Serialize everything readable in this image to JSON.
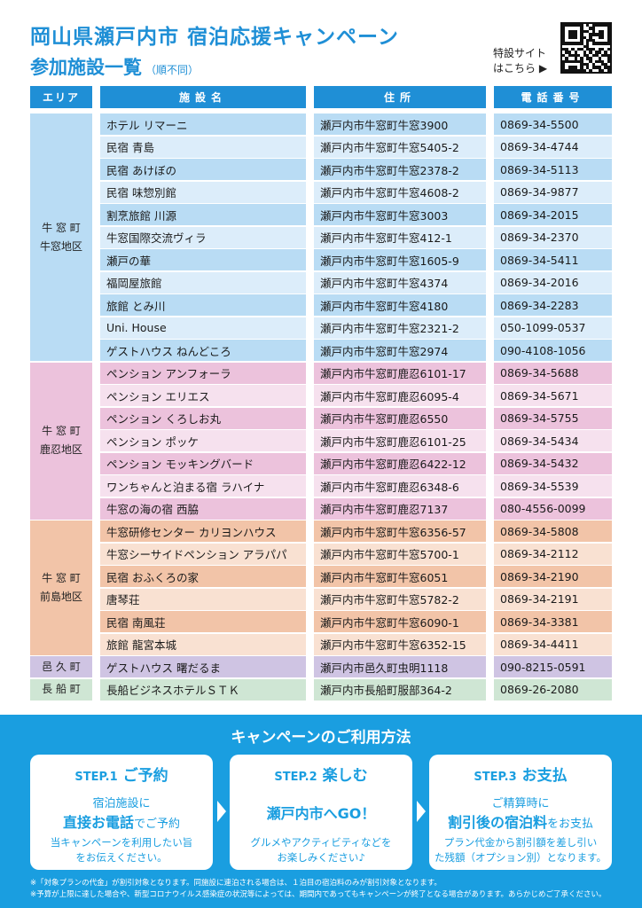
{
  "header": {
    "title_line1": "岡山県瀬戸内市 宿泊応援キャンペーン",
    "title_line2": "参加施設一覧",
    "title_sub": "（順不同）",
    "special_site_line1": "特設サイト",
    "special_site_line2": "はこちら ▶"
  },
  "columns": {
    "area": "エリア",
    "name": "施設名",
    "address": "住所",
    "phone": "電話番号"
  },
  "colors": {
    "blue_dark": "#b9dcf4",
    "blue_light": "#dcedfa",
    "pink_dark": "#ecc2dc",
    "pink_light": "#f6e1ee",
    "orange_dark": "#f2c4a8",
    "orange_light": "#f9e1d2",
    "purple_dark": "#cfc4e3",
    "green_dark": "#cfe6d4"
  },
  "areas": [
    {
      "line1": "牛 窓 町",
      "line2": "牛窓地区"
    },
    {
      "line1": "牛 窓 町",
      "line2": "鹿忍地区"
    },
    {
      "line1": "牛 窓 町",
      "line2": "前島地区"
    },
    {
      "line1": "邑 久 町",
      "line2": ""
    },
    {
      "line1": "長 船 町",
      "line2": ""
    }
  ],
  "facilities": [
    {
      "area": 0,
      "name": "ホテル リマーニ",
      "address": "瀬戸内市牛窓町牛窓3900",
      "phone": "0869-34-5500"
    },
    {
      "area": 0,
      "name": "民宿 青島",
      "address": "瀬戸内市牛窓町牛窓5405-2",
      "phone": "0869-34-4744"
    },
    {
      "area": 0,
      "name": "民宿 あけぼの",
      "address": "瀬戸内市牛窓町牛窓2378-2",
      "phone": "0869-34-5113"
    },
    {
      "area": 0,
      "name": "民宿 味惣別館",
      "address": "瀬戸内市牛窓町牛窓4608-2",
      "phone": "0869-34-9877"
    },
    {
      "area": 0,
      "name": "割烹旅館 川源",
      "address": "瀬戸内市牛窓町牛窓3003",
      "phone": "0869-34-2015"
    },
    {
      "area": 0,
      "name": "牛窓国際交流ヴィラ",
      "address": "瀬戸内市牛窓町牛窓412-1",
      "phone": "0869-34-2370"
    },
    {
      "area": 0,
      "name": "瀬戸の華",
      "address": "瀬戸内市牛窓町牛窓1605-9",
      "phone": "0869-34-5411"
    },
    {
      "area": 0,
      "name": "福岡屋旅館",
      "address": "瀬戸内市牛窓町牛窓4374",
      "phone": "0869-34-2016"
    },
    {
      "area": 0,
      "name": "旅館 とみ川",
      "address": "瀬戸内市牛窓町牛窓4180",
      "phone": "0869-34-2283"
    },
    {
      "area": 0,
      "name": " Uni. House",
      "address": "瀬戸内市牛窓町牛窓2321-2",
      "phone": "050-1099-0537"
    },
    {
      "area": 0,
      "name": "ゲストハウス ねんどころ",
      "address": "瀬戸内市牛窓町牛窓2974",
      "phone": "090-4108-1056"
    },
    {
      "area": 1,
      "name": "ペンション アンフォーラ",
      "address": "瀬戸内市牛窓町鹿忍6101-17",
      "phone": "0869-34-5688"
    },
    {
      "area": 1,
      "name": "ペンション エリエス",
      "address": "瀬戸内市牛窓町鹿忍6095-4",
      "phone": "0869-34-5671"
    },
    {
      "area": 1,
      "name": "ペンション くろしお丸",
      "address": "瀬戸内市牛窓町鹿忍6550",
      "phone": "0869-34-5755"
    },
    {
      "area": 1,
      "name": "ペンション ポッケ",
      "address": "瀬戸内市牛窓町鹿忍6101-25",
      "phone": "0869-34-5434"
    },
    {
      "area": 1,
      "name": "ペンション モッキングバード",
      "address": "瀬戸内市牛窓町鹿忍6422-12",
      "phone": "0869-34-5432"
    },
    {
      "area": 1,
      "name": "ワンちゃんと泊まる宿 ラハイナ",
      "address": "瀬戸内市牛窓町鹿忍6348-6",
      "phone": "0869-34-5539"
    },
    {
      "area": 1,
      "name": "牛窓の海の宿 西脇",
      "address": "瀬戸内市牛窓町鹿忍7137",
      "phone": "080-4556-0099"
    },
    {
      "area": 2,
      "name": "牛窓研修センター カリヨンハウス",
      "address": "瀬戸内市牛窓町牛窓6356-57",
      "phone": "0869-34-5808"
    },
    {
      "area": 2,
      "name": "牛窓シーサイドペンション アラパパ",
      "address": "瀬戸内市牛窓町牛窓5700-1",
      "phone": "0869-34-2112"
    },
    {
      "area": 2,
      "name": "民宿 おふくろの家",
      "address": "瀬戸内市牛窓町牛窓6051",
      "phone": "0869-34-2190"
    },
    {
      "area": 2,
      "name": "唐琴荘",
      "address": "瀬戸内市牛窓町牛窓5782-2",
      "phone": "0869-34-2191"
    },
    {
      "area": 2,
      "name": "民宿 南風荘",
      "address": "瀬戸内市牛窓町牛窓6090-1",
      "phone": "0869-34-3381"
    },
    {
      "area": 2,
      "name": "旅館 龍宮本城",
      "address": "瀬戸内市牛窓町牛窓6352-15",
      "phone": "0869-34-4411"
    },
    {
      "area": 3,
      "name": "ゲストハウス 曙だるま",
      "address": "瀬戸内市邑久町虫明1118",
      "phone": "090-8215-0591"
    },
    {
      "area": 4,
      "name": "長船ビジネスホテルＳＴＫ",
      "address": "瀬戸内市長船町服部364-2",
      "phone": "0869-26-2080"
    }
  ],
  "usage": {
    "title": "キャンペーンのご利用方法",
    "steps": [
      {
        "label": "STEP.1",
        "title": "ご予約",
        "line1": "宿泊施設に",
        "line2_bold": "直接お電話",
        "line2_rest": "でご予約",
        "note1": "当キャンペーンを利用したい旨",
        "note2": "をお伝えください。"
      },
      {
        "label": "STEP.2",
        "title": "楽しむ",
        "line1": "",
        "line2_bold": "瀬戸内市へGO！",
        "line2_rest": "",
        "note1": "グルメやアクティビティなどを",
        "note2": "お楽しみください♪"
      },
      {
        "label": "STEP.3",
        "title": "お支払",
        "line1": "ご精算時に",
        "line2_bold": "割引後の宿泊料",
        "line2_rest": "をお支払",
        "note1": "プラン代金から割引額を差し引い",
        "note2": "た残額（オプション別）となります。"
      }
    ],
    "note1": "※「対象プランの代金」が割引対象となります。同施設に連泊される場合は、１泊目の宿泊料のみが割引対象となります。",
    "note2": "※予算が上限に達した場合や、新型コロナウイルス感染症の状況等によっては、期間内であってもキャンペーンが終了となる場合があります。あらかじめご了承ください。"
  }
}
